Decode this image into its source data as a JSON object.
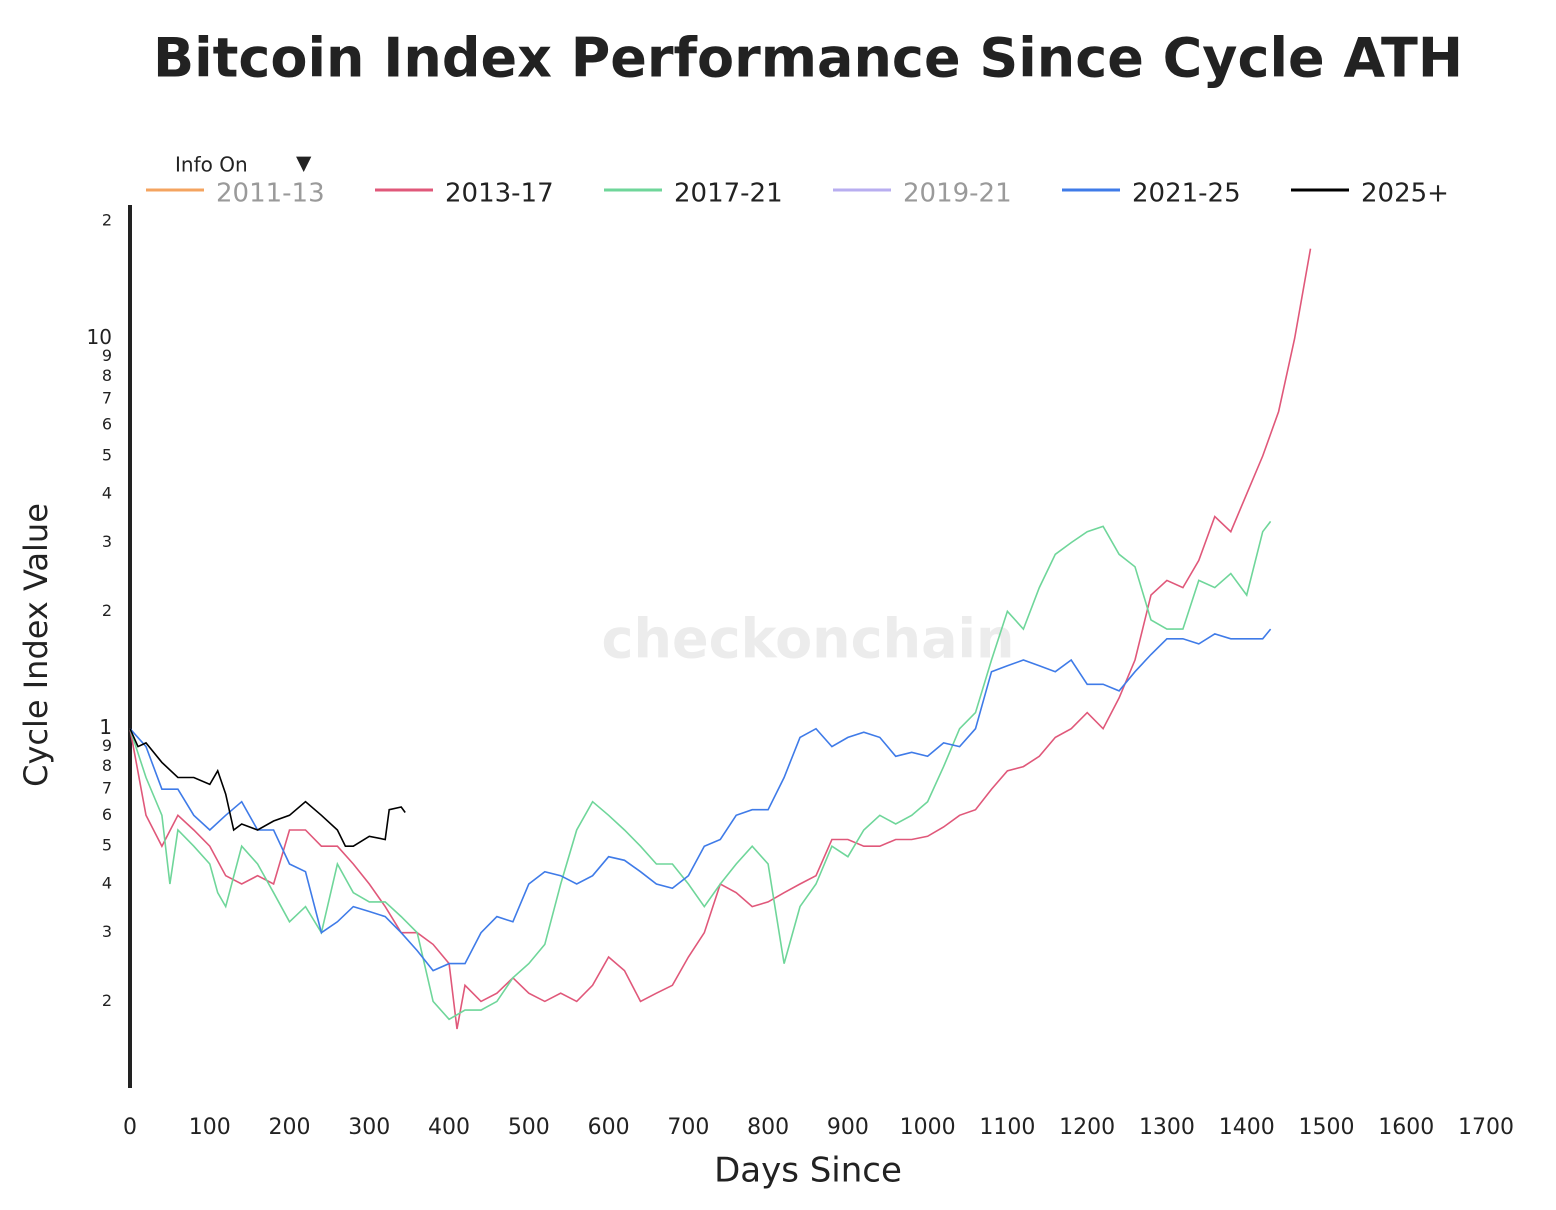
{
  "chart_data": {
    "type": "line",
    "title": "Bitcoin Index Performance Since Cycle ATH",
    "control": {
      "label": "Info On",
      "arrow": "▼"
    },
    "watermark": "checkonchain",
    "x_label": "Days Since",
    "y_label": "Cycle Index Value",
    "log_y": true,
    "xlim": [
      0,
      1700
    ],
    "xticks": [
      0,
      100,
      200,
      300,
      400,
      500,
      600,
      700,
      800,
      900,
      1000,
      1100,
      1200,
      1300,
      1400,
      1500,
      1600,
      1700
    ],
    "ylim": [
      0.12,
      22
    ],
    "yticks": [
      {
        "value": 0.2,
        "label": "2"
      },
      {
        "value": 0.3,
        "label": "3"
      },
      {
        "value": 0.4,
        "label": "4"
      },
      {
        "value": 0.5,
        "label": "5"
      },
      {
        "value": 0.6,
        "label": "6"
      },
      {
        "value": 0.7,
        "label": "7"
      },
      {
        "value": 0.8,
        "label": "8"
      },
      {
        "value": 0.9,
        "label": "9"
      },
      1,
      2,
      3,
      4,
      5,
      6,
      7,
      8,
      9,
      10,
      {
        "value": 20,
        "label": "2"
      }
    ],
    "series": [
      {
        "name": "2011-13",
        "color": "#f4a460",
        "visible": false,
        "x": [],
        "values": []
      },
      {
        "name": "2013-17",
        "color": "#e0587a",
        "visible": true,
        "x": [
          0,
          20,
          40,
          60,
          80,
          100,
          120,
          140,
          160,
          180,
          200,
          220,
          240,
          260,
          280,
          300,
          320,
          340,
          360,
          380,
          400,
          410,
          420,
          440,
          460,
          480,
          500,
          520,
          540,
          560,
          580,
          600,
          620,
          640,
          660,
          680,
          700,
          720,
          740,
          760,
          780,
          800,
          820,
          840,
          860,
          880,
          900,
          920,
          940,
          960,
          980,
          1000,
          1020,
          1040,
          1060,
          1080,
          1100,
          1120,
          1140,
          1160,
          1180,
          1200,
          1220,
          1240,
          1260,
          1280,
          1300,
          1320,
          1340,
          1360,
          1380,
          1400,
          1420,
          1440,
          1460,
          1480
        ],
        "values": [
          1,
          0.6,
          0.5,
          0.6,
          0.55,
          0.5,
          0.42,
          0.4,
          0.42,
          0.4,
          0.55,
          0.55,
          0.5,
          0.5,
          0.45,
          0.4,
          0.35,
          0.3,
          0.3,
          0.28,
          0.25,
          0.17,
          0.22,
          0.2,
          0.21,
          0.23,
          0.21,
          0.2,
          0.21,
          0.2,
          0.22,
          0.26,
          0.24,
          0.2,
          0.21,
          0.22,
          0.26,
          0.3,
          0.4,
          0.38,
          0.35,
          0.36,
          0.38,
          0.4,
          0.42,
          0.52,
          0.52,
          0.5,
          0.5,
          0.52,
          0.52,
          0.53,
          0.56,
          0.6,
          0.62,
          0.7,
          0.78,
          0.8,
          0.85,
          0.95,
          1.0,
          1.1,
          1.0,
          1.2,
          1.5,
          2.2,
          2.4,
          2.3,
          2.7,
          3.5,
          3.2,
          4.0,
          5.0,
          6.5,
          10,
          17
        ]
      },
      {
        "name": "2017-21",
        "color": "#6fd69a",
        "visible": true,
        "x": [
          0,
          20,
          40,
          50,
          60,
          80,
          100,
          110,
          120,
          140,
          160,
          180,
          200,
          220,
          240,
          260,
          280,
          300,
          320,
          340,
          360,
          380,
          400,
          420,
          440,
          460,
          480,
          500,
          520,
          540,
          560,
          580,
          600,
          620,
          640,
          660,
          680,
          700,
          720,
          740,
          760,
          780,
          800,
          820,
          840,
          860,
          880,
          900,
          920,
          940,
          960,
          980,
          1000,
          1020,
          1040,
          1060,
          1080,
          1100,
          1120,
          1140,
          1160,
          1180,
          1200,
          1220,
          1240,
          1260,
          1280,
          1300,
          1320,
          1340,
          1360,
          1380,
          1400,
          1420,
          1430
        ],
        "values": [
          1,
          0.75,
          0.6,
          0.4,
          0.55,
          0.5,
          0.45,
          0.38,
          0.35,
          0.5,
          0.45,
          0.38,
          0.32,
          0.35,
          0.3,
          0.45,
          0.38,
          0.36,
          0.36,
          0.33,
          0.3,
          0.2,
          0.18,
          0.19,
          0.19,
          0.2,
          0.23,
          0.25,
          0.28,
          0.4,
          0.55,
          0.65,
          0.6,
          0.55,
          0.5,
          0.45,
          0.45,
          0.4,
          0.35,
          0.4,
          0.45,
          0.5,
          0.45,
          0.25,
          0.35,
          0.4,
          0.5,
          0.47,
          0.55,
          0.6,
          0.57,
          0.6,
          0.65,
          0.8,
          1.0,
          1.1,
          1.5,
          2.0,
          1.8,
          2.3,
          2.8,
          3.0,
          3.2,
          3.3,
          2.8,
          2.6,
          1.9,
          1.8,
          1.8,
          2.4,
          2.3,
          2.5,
          2.2,
          3.2,
          3.4
        ]
      },
      {
        "name": "2019-21",
        "color": "#b8aef0",
        "visible": false,
        "x": [],
        "values": []
      },
      {
        "name": "2021-25",
        "color": "#3f7be8",
        "visible": true,
        "x": [
          0,
          20,
          40,
          60,
          80,
          100,
          120,
          140,
          160,
          180,
          200,
          220,
          240,
          260,
          280,
          300,
          320,
          340,
          360,
          380,
          400,
          420,
          440,
          460,
          480,
          500,
          520,
          540,
          560,
          580,
          600,
          620,
          640,
          660,
          680,
          700,
          720,
          740,
          760,
          780,
          800,
          820,
          840,
          860,
          880,
          900,
          920,
          940,
          960,
          980,
          1000,
          1020,
          1040,
          1060,
          1080,
          1100,
          1120,
          1140,
          1160,
          1180,
          1200,
          1220,
          1240,
          1260,
          1280,
          1300,
          1320,
          1340,
          1360,
          1380,
          1400,
          1420,
          1430
        ],
        "values": [
          1,
          0.9,
          0.7,
          0.7,
          0.6,
          0.55,
          0.6,
          0.65,
          0.55,
          0.55,
          0.45,
          0.43,
          0.3,
          0.32,
          0.35,
          0.34,
          0.33,
          0.3,
          0.27,
          0.24,
          0.25,
          0.25,
          0.3,
          0.33,
          0.32,
          0.4,
          0.43,
          0.42,
          0.4,
          0.42,
          0.47,
          0.46,
          0.43,
          0.4,
          0.39,
          0.42,
          0.5,
          0.52,
          0.6,
          0.62,
          0.62,
          0.75,
          0.95,
          1.0,
          0.9,
          0.95,
          0.98,
          0.95,
          0.85,
          0.87,
          0.85,
          0.92,
          0.9,
          1.0,
          1.4,
          1.45,
          1.5,
          1.45,
          1.4,
          1.5,
          1.3,
          1.3,
          1.25,
          1.4,
          1.55,
          1.7,
          1.7,
          1.65,
          1.75,
          1.7,
          1.7,
          1.7,
          1.8
        ]
      },
      {
        "name": "2025+",
        "color": "#000000",
        "visible": true,
        "x": [
          0,
          10,
          20,
          40,
          60,
          80,
          100,
          110,
          120,
          130,
          140,
          160,
          180,
          200,
          220,
          240,
          260,
          270,
          280,
          300,
          320,
          325,
          340,
          345
        ],
        "values": [
          1,
          0.9,
          0.92,
          0.82,
          0.75,
          0.75,
          0.72,
          0.78,
          0.68,
          0.55,
          0.57,
          0.55,
          0.58,
          0.6,
          0.65,
          0.6,
          0.55,
          0.5,
          0.5,
          0.53,
          0.52,
          0.62,
          0.63,
          0.61
        ]
      }
    ]
  }
}
